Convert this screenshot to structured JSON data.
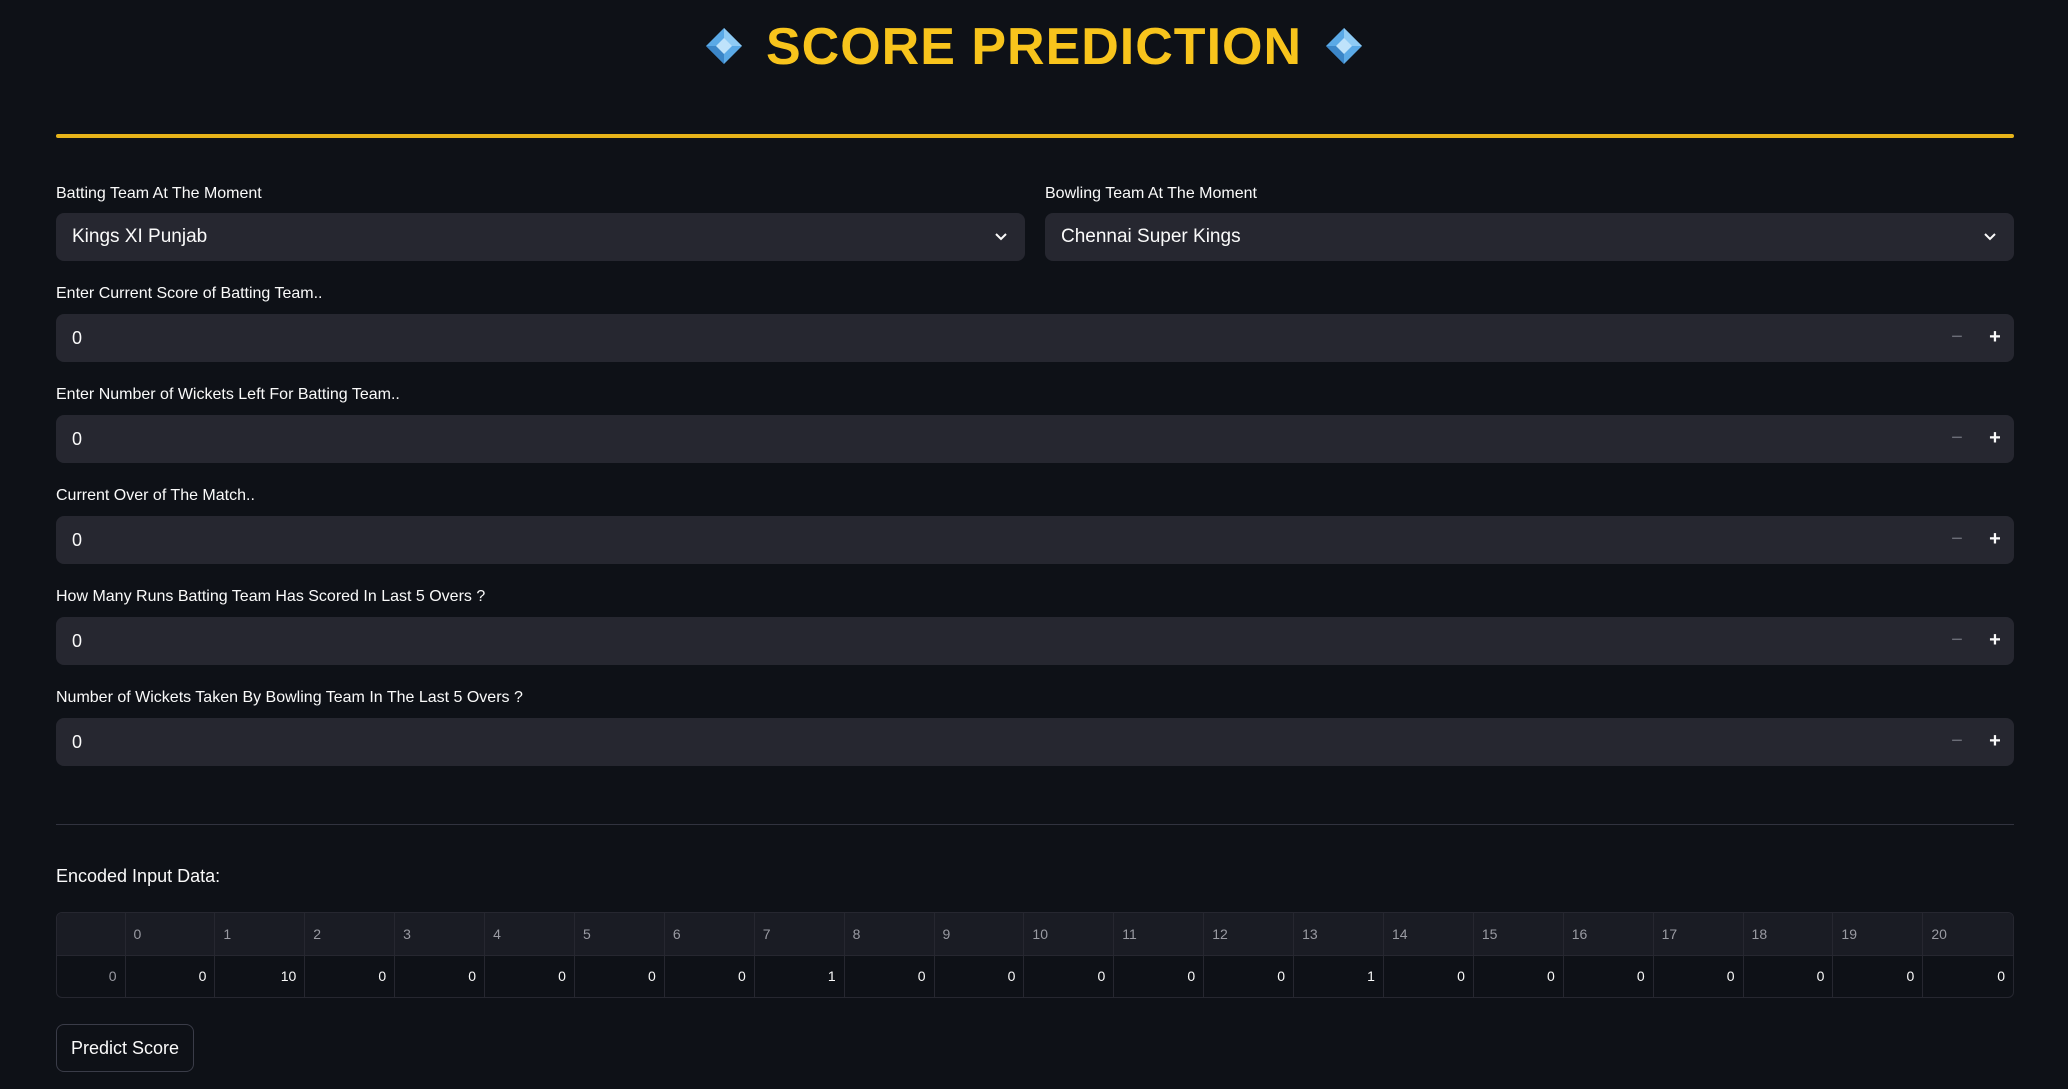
{
  "header": {
    "title": "SCORE PREDICTION"
  },
  "colors": {
    "background": "#0e1117",
    "accent": "#f8c41c",
    "input_bg": "#262730"
  },
  "form": {
    "batting_team": {
      "label": "Batting Team At The Moment",
      "value": "Kings XI Punjab"
    },
    "bowling_team": {
      "label": "Bowling Team At The Moment",
      "value": "Chennai Super Kings"
    },
    "current_score": {
      "label": "Enter Current Score of Batting Team..",
      "value": "0"
    },
    "wickets_left": {
      "label": "Enter Number of Wickets Left For Batting Team..",
      "value": "0"
    },
    "current_over": {
      "label": "Current Over of The Match..",
      "value": "0"
    },
    "runs_last_5": {
      "label": "How Many Runs Batting Team Has Scored In Last 5 Overs ?",
      "value": "0"
    },
    "wickets_last_5": {
      "label": "Number of Wickets Taken By Bowling Team In The Last 5 Overs ?",
      "value": "0"
    }
  },
  "encoded": {
    "title": "Encoded Input Data:",
    "row_index": "0",
    "columns": [
      "0",
      "1",
      "2",
      "3",
      "4",
      "5",
      "6",
      "7",
      "8",
      "9",
      "10",
      "11",
      "12",
      "13",
      "14",
      "15",
      "16",
      "17",
      "18",
      "19",
      "20"
    ],
    "values": [
      "0",
      "10",
      "0",
      "0",
      "0",
      "0",
      "0",
      "1",
      "0",
      "0",
      "0",
      "0",
      "0",
      "1",
      "0",
      "0",
      "0",
      "0",
      "0",
      "0",
      "0"
    ]
  },
  "actions": {
    "predict_label": "Predict Score"
  },
  "icons": {
    "title_left": "diamond-icon",
    "title_right": "diamond-icon",
    "dropdown": "chevron-down-icon",
    "decrement": "minus-icon",
    "increment": "plus-icon"
  }
}
